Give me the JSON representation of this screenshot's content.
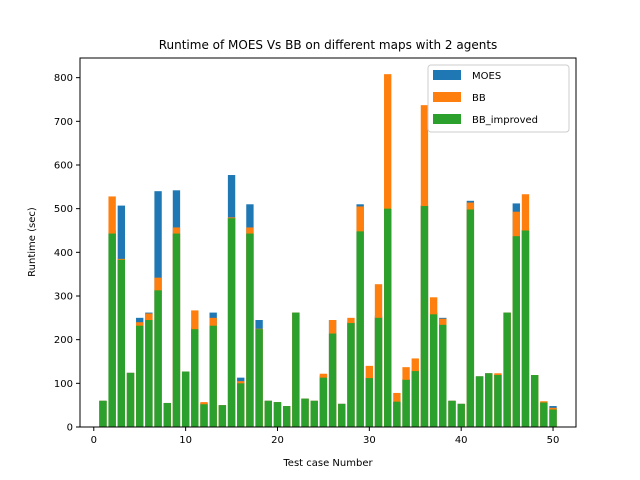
{
  "chart_data": {
    "type": "bar",
    "stacked_overlap": true,
    "title": "Runtime of MOES Vs BB on different maps with 2 agents",
    "xlabel": "Test case Number",
    "ylabel": "Runtime (sec)",
    "xlim": [
      -1.5,
      52.5
    ],
    "ylim": [
      0,
      845
    ],
    "xticks": [
      0,
      10,
      20,
      30,
      40,
      50
    ],
    "yticks": [
      0,
      100,
      200,
      300,
      400,
      500,
      600,
      700,
      800
    ],
    "grid": false,
    "legend_position": "top-right",
    "x": [
      1,
      2,
      3,
      4,
      5,
      6,
      7,
      8,
      9,
      10,
      11,
      12,
      13,
      14,
      15,
      16,
      17,
      18,
      19,
      20,
      21,
      22,
      23,
      24,
      25,
      26,
      27,
      28,
      29,
      30,
      31,
      32,
      33,
      34,
      35,
      36,
      37,
      38,
      39,
      40,
      41,
      42,
      43,
      44,
      45,
      46,
      47,
      48,
      49,
      50
    ],
    "series": [
      {
        "name": "MOES",
        "color": "#1f77b4",
        "values": [
          60,
          450,
          507,
          124,
          250,
          262,
          540,
          55,
          542,
          127,
          228,
          55,
          262,
          50,
          577,
          113,
          510,
          245,
          60,
          57,
          48,
          262,
          65,
          60,
          118,
          245,
          53,
          240,
          510,
          113,
          255,
          500,
          58,
          110,
          130,
          508,
          262,
          250,
          60,
          53,
          518,
          116,
          123,
          120,
          262,
          512,
          452,
          119,
          57,
          48
        ]
      },
      {
        "name": "BB",
        "color": "#ff7f0e",
        "values": [
          60,
          528,
          385,
          124,
          240,
          260,
          342,
          55,
          457,
          127,
          267,
          57,
          250,
          50,
          480,
          105,
          457,
          225,
          60,
          57,
          48,
          262,
          65,
          60,
          122,
          245,
          53,
          250,
          505,
          140,
          327,
          808,
          78,
          137,
          157,
          737,
          297,
          248,
          60,
          53,
          514,
          116,
          123,
          123,
          262,
          493,
          533,
          119,
          59,
          44
        ]
      },
      {
        "name": "BB_improved",
        "color": "#2ca02c",
        "values": [
          60,
          443,
          383,
          124,
          232,
          245,
          313,
          55,
          443,
          127,
          224,
          52,
          232,
          50,
          478,
          100,
          443,
          224,
          60,
          57,
          48,
          262,
          65,
          60,
          113,
          214,
          53,
          238,
          448,
          112,
          250,
          500,
          58,
          108,
          128,
          506,
          258,
          234,
          60,
          53,
          498,
          116,
          123,
          119,
          262,
          437,
          450,
          119,
          56,
          40
        ]
      }
    ]
  }
}
